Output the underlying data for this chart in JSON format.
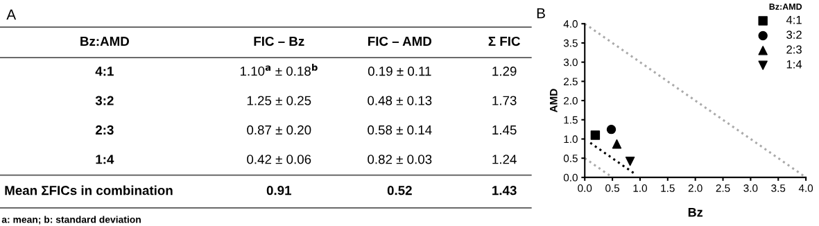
{
  "chart_data": [
    {
      "type": "other",
      "title": "A",
      "annotations": [
        "Bz:AMD",
        "FIC – Bz",
        "FIC – AMD",
        "Σ FIC",
        "4:1",
        "1.10$^{a}$ ± 0.18$^{b}$",
        "0.19 ± 0.11",
        "1.29",
        "3:2",
        "1.25 ± 0.25",
        "0.48 ± 0.13",
        "1.73",
        "2:3",
        "0.87 ± 0.20",
        "0.58 ± 0.14",
        "1.45",
        "1:4",
        "0.42 ± 0.06",
        "0.82 ± 0.03",
        "1.24",
        "Mean ΣFICs in combination",
        "0.91",
        "0.52",
        "1.43",
        "a: mean; b: standard deviation"
      ]
    },
    {
      "type": "scatter",
      "title": "B",
      "xlabel": "Bz",
      "ylabel": "AMD",
      "legend_title": "Bz:AMD",
      "legend": "top right",
      "xlim": [
        0,
        4
      ],
      "ylim": [
        0,
        4
      ],
      "xticks": [
        {
          "value": 0,
          "label": "0.0"
        },
        {
          "value": 0.5,
          "label": "0.5"
        },
        {
          "value": 1,
          "label": "1.0"
        },
        {
          "value": 1.5,
          "label": "1.5"
        },
        {
          "value": 2,
          "label": "2.0"
        },
        {
          "value": 2.5,
          "label": "2.5"
        },
        {
          "value": 3,
          "label": "3.0"
        },
        {
          "value": 3.5,
          "label": "3.5"
        },
        {
          "value": 4,
          "label": "4.0"
        }
      ],
      "yticks": [
        {
          "value": 0,
          "label": "0.0"
        },
        {
          "value": 0.5,
          "label": "0.5"
        },
        {
          "value": 1,
          "label": "1.0"
        },
        {
          "value": 1.5,
          "label": "1.5"
        },
        {
          "value": 2,
          "label": "2.0"
        },
        {
          "value": 2.5,
          "label": "2.5"
        },
        {
          "value": 3,
          "label": "3.0"
        },
        {
          "value": 3.5,
          "label": "3.5"
        },
        {
          "value": 4,
          "label": "4.0"
        }
      ],
      "grid": false,
      "series": [
        {
          "name": "4:1",
          "color": "#000000",
          "marker": "square",
          "x": [
            0.19
          ],
          "values": [
            1.1
          ]
        },
        {
          "name": "3:2",
          "color": "#000000",
          "marker": "circle",
          "x": [
            0.48
          ],
          "values": [
            1.25
          ]
        },
        {
          "name": "2:3",
          "color": "#000000",
          "marker": "triangle",
          "x": [
            0.58
          ],
          "values": [
            0.87
          ]
        },
        {
          "name": "1:4",
          "color": "#000000",
          "marker": "triangle_down",
          "x": [
            0.82
          ],
          "values": [
            0.42
          ]
        },
        {
          "type": "line",
          "color": "#aaaaaa",
          "line_style": "dotted",
          "x": [
            0,
            4
          ],
          "values": [
            4,
            0
          ]
        },
        {
          "type": "line",
          "color": "#aaaaaa",
          "line_style": "dotted",
          "x": [
            0,
            0.5
          ],
          "values": [
            0.5,
            0
          ]
        },
        {
          "type": "line",
          "color": "#000000",
          "line_style": "dotted",
          "x": [
            0.1,
            0.9
          ],
          "values": [
            0.9,
            0.1
          ]
        }
      ]
    }
  ]
}
